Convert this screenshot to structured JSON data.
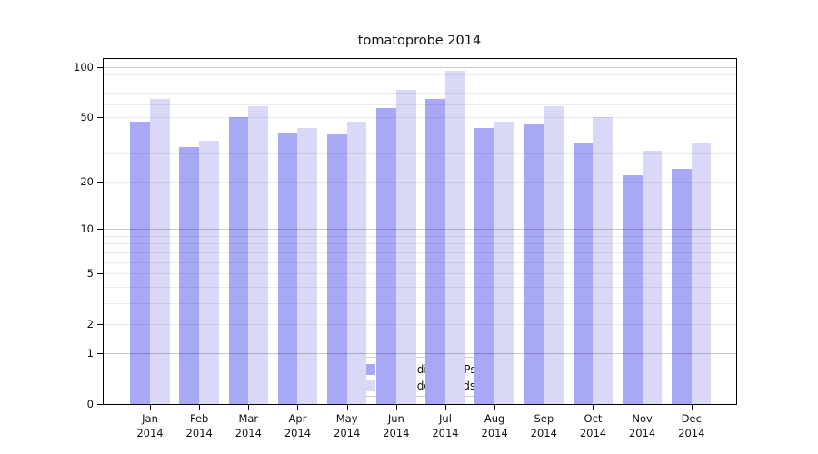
{
  "title": "tomatoprobe 2014",
  "chart_data": {
    "type": "bar",
    "title": "tomatoprobe 2014",
    "y_scale": "symlog (position proportional to ln(1+v))",
    "grid": true,
    "legend_position": "lower center inside plot",
    "year": "2014",
    "months": [
      "Jan",
      "Feb",
      "Mar",
      "Apr",
      "May",
      "Jun",
      "Jul",
      "Aug",
      "Sep",
      "Oct",
      "Nov",
      "Dec"
    ],
    "series": [
      {
        "name": "Nb of distinct IPs",
        "key": "distinct-ips",
        "color": "#a8a8f7",
        "values": [
          47,
          33,
          50,
          40,
          39,
          57,
          64,
          43,
          45,
          35,
          22,
          24
        ]
      },
      {
        "name": "Nb of downloads",
        "key": "downloads",
        "color": "#d9d9f7",
        "values": [
          64,
          36,
          58,
          43,
          47,
          73,
          95,
          47,
          58,
          50,
          31,
          35
        ]
      }
    ],
    "y_tick_labels": [
      0,
      1,
      2,
      5,
      10,
      20,
      50,
      100
    ],
    "y_gridline_values": [
      1,
      2,
      3,
      4,
      5,
      6,
      7,
      8,
      9,
      10,
      20,
      30,
      40,
      50,
      60,
      70,
      80,
      90,
      100
    ],
    "y_major_gridline_values": [
      1,
      10,
      100
    ],
    "ylim": [
      0,
      113
    ],
    "xlabel": "",
    "ylabel": ""
  }
}
